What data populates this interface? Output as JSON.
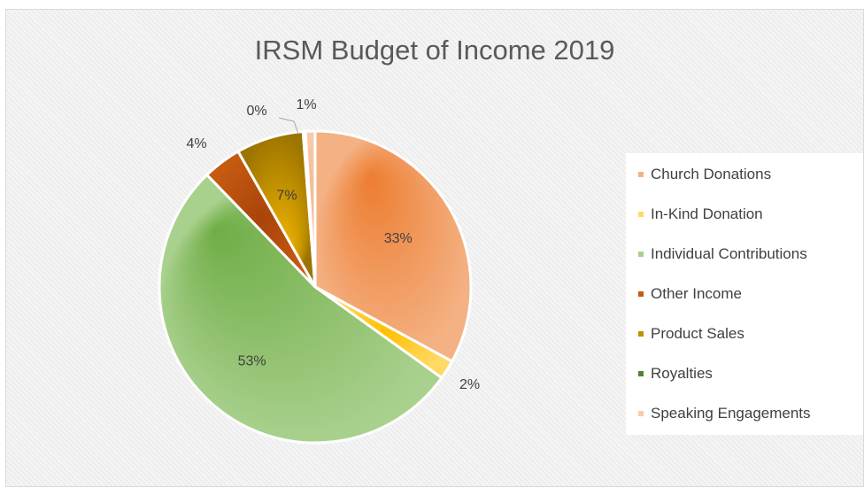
{
  "chart_data": {
    "type": "pie",
    "title": "IRSM Budget of Income 2019",
    "legend_position": "right",
    "slices": [
      {
        "name": "Church Donations",
        "value": 33,
        "label": "33%",
        "color": "#F4B183"
      },
      {
        "name": "In-Kind Donation",
        "value": 2,
        "label": "2%",
        "color": "#FFD966"
      },
      {
        "name": "Individual Contributions",
        "value": 53,
        "label": "53%",
        "color": "#A9D18E"
      },
      {
        "name": "Other Income",
        "value": 4,
        "label": "4%",
        "color": "#C55A11"
      },
      {
        "name": "Product Sales",
        "value": 7,
        "label": "7%",
        "color": "#BF9000"
      },
      {
        "name": "Royalties",
        "value": 0,
        "label": "0%",
        "color": "#548235"
      },
      {
        "name": "Speaking Engagements",
        "value": 1,
        "label": "1%",
        "color": "#F8CBAD"
      }
    ]
  }
}
